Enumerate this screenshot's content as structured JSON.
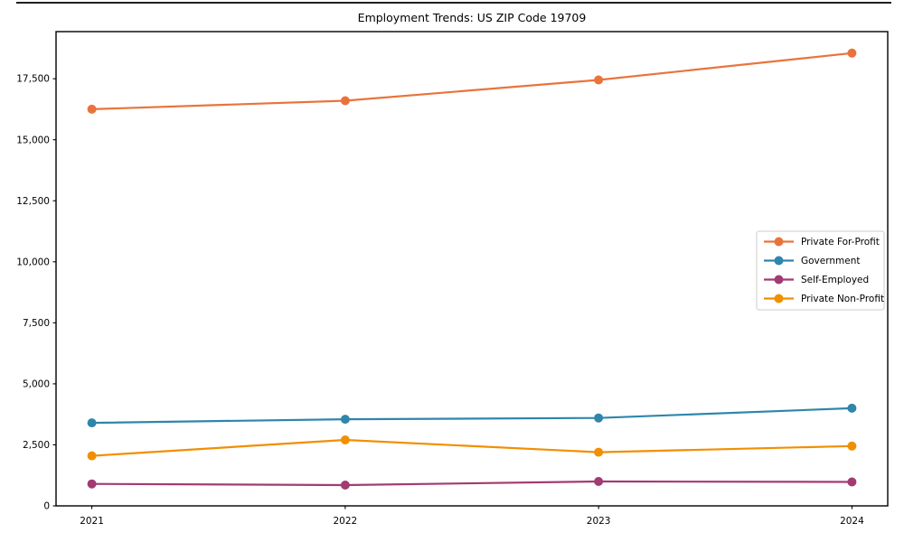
{
  "chart_data": {
    "type": "line",
    "title": "Employment Trends: US ZIP Code 19709",
    "categories": [
      "2021",
      "2022",
      "2023",
      "2024"
    ],
    "series": [
      {
        "name": "Private For-Profit",
        "color": "#E8743B",
        "values": [
          16250,
          16600,
          17450,
          18550
        ]
      },
      {
        "name": "Government",
        "color": "#2E86AB",
        "values": [
          3400,
          3550,
          3600,
          4000
        ]
      },
      {
        "name": "Self-Employed",
        "color": "#A23B72",
        "values": [
          900,
          850,
          1000,
          980
        ]
      },
      {
        "name": "Private Non-Profit",
        "color": "#F18F01",
        "values": [
          2050,
          2700,
          2200,
          2450
        ]
      }
    ],
    "yticks": [
      0,
      2500,
      5000,
      7500,
      10000,
      12500,
      15000,
      17500
    ],
    "ylim": [
      0,
      19430
    ],
    "xlabel": "",
    "ylabel": "",
    "grid": false,
    "legend_position": "center-right",
    "marker": "circle",
    "background_color": "#ffffff",
    "spine_color": "#000000",
    "legend_border_color": "#cccccc"
  }
}
